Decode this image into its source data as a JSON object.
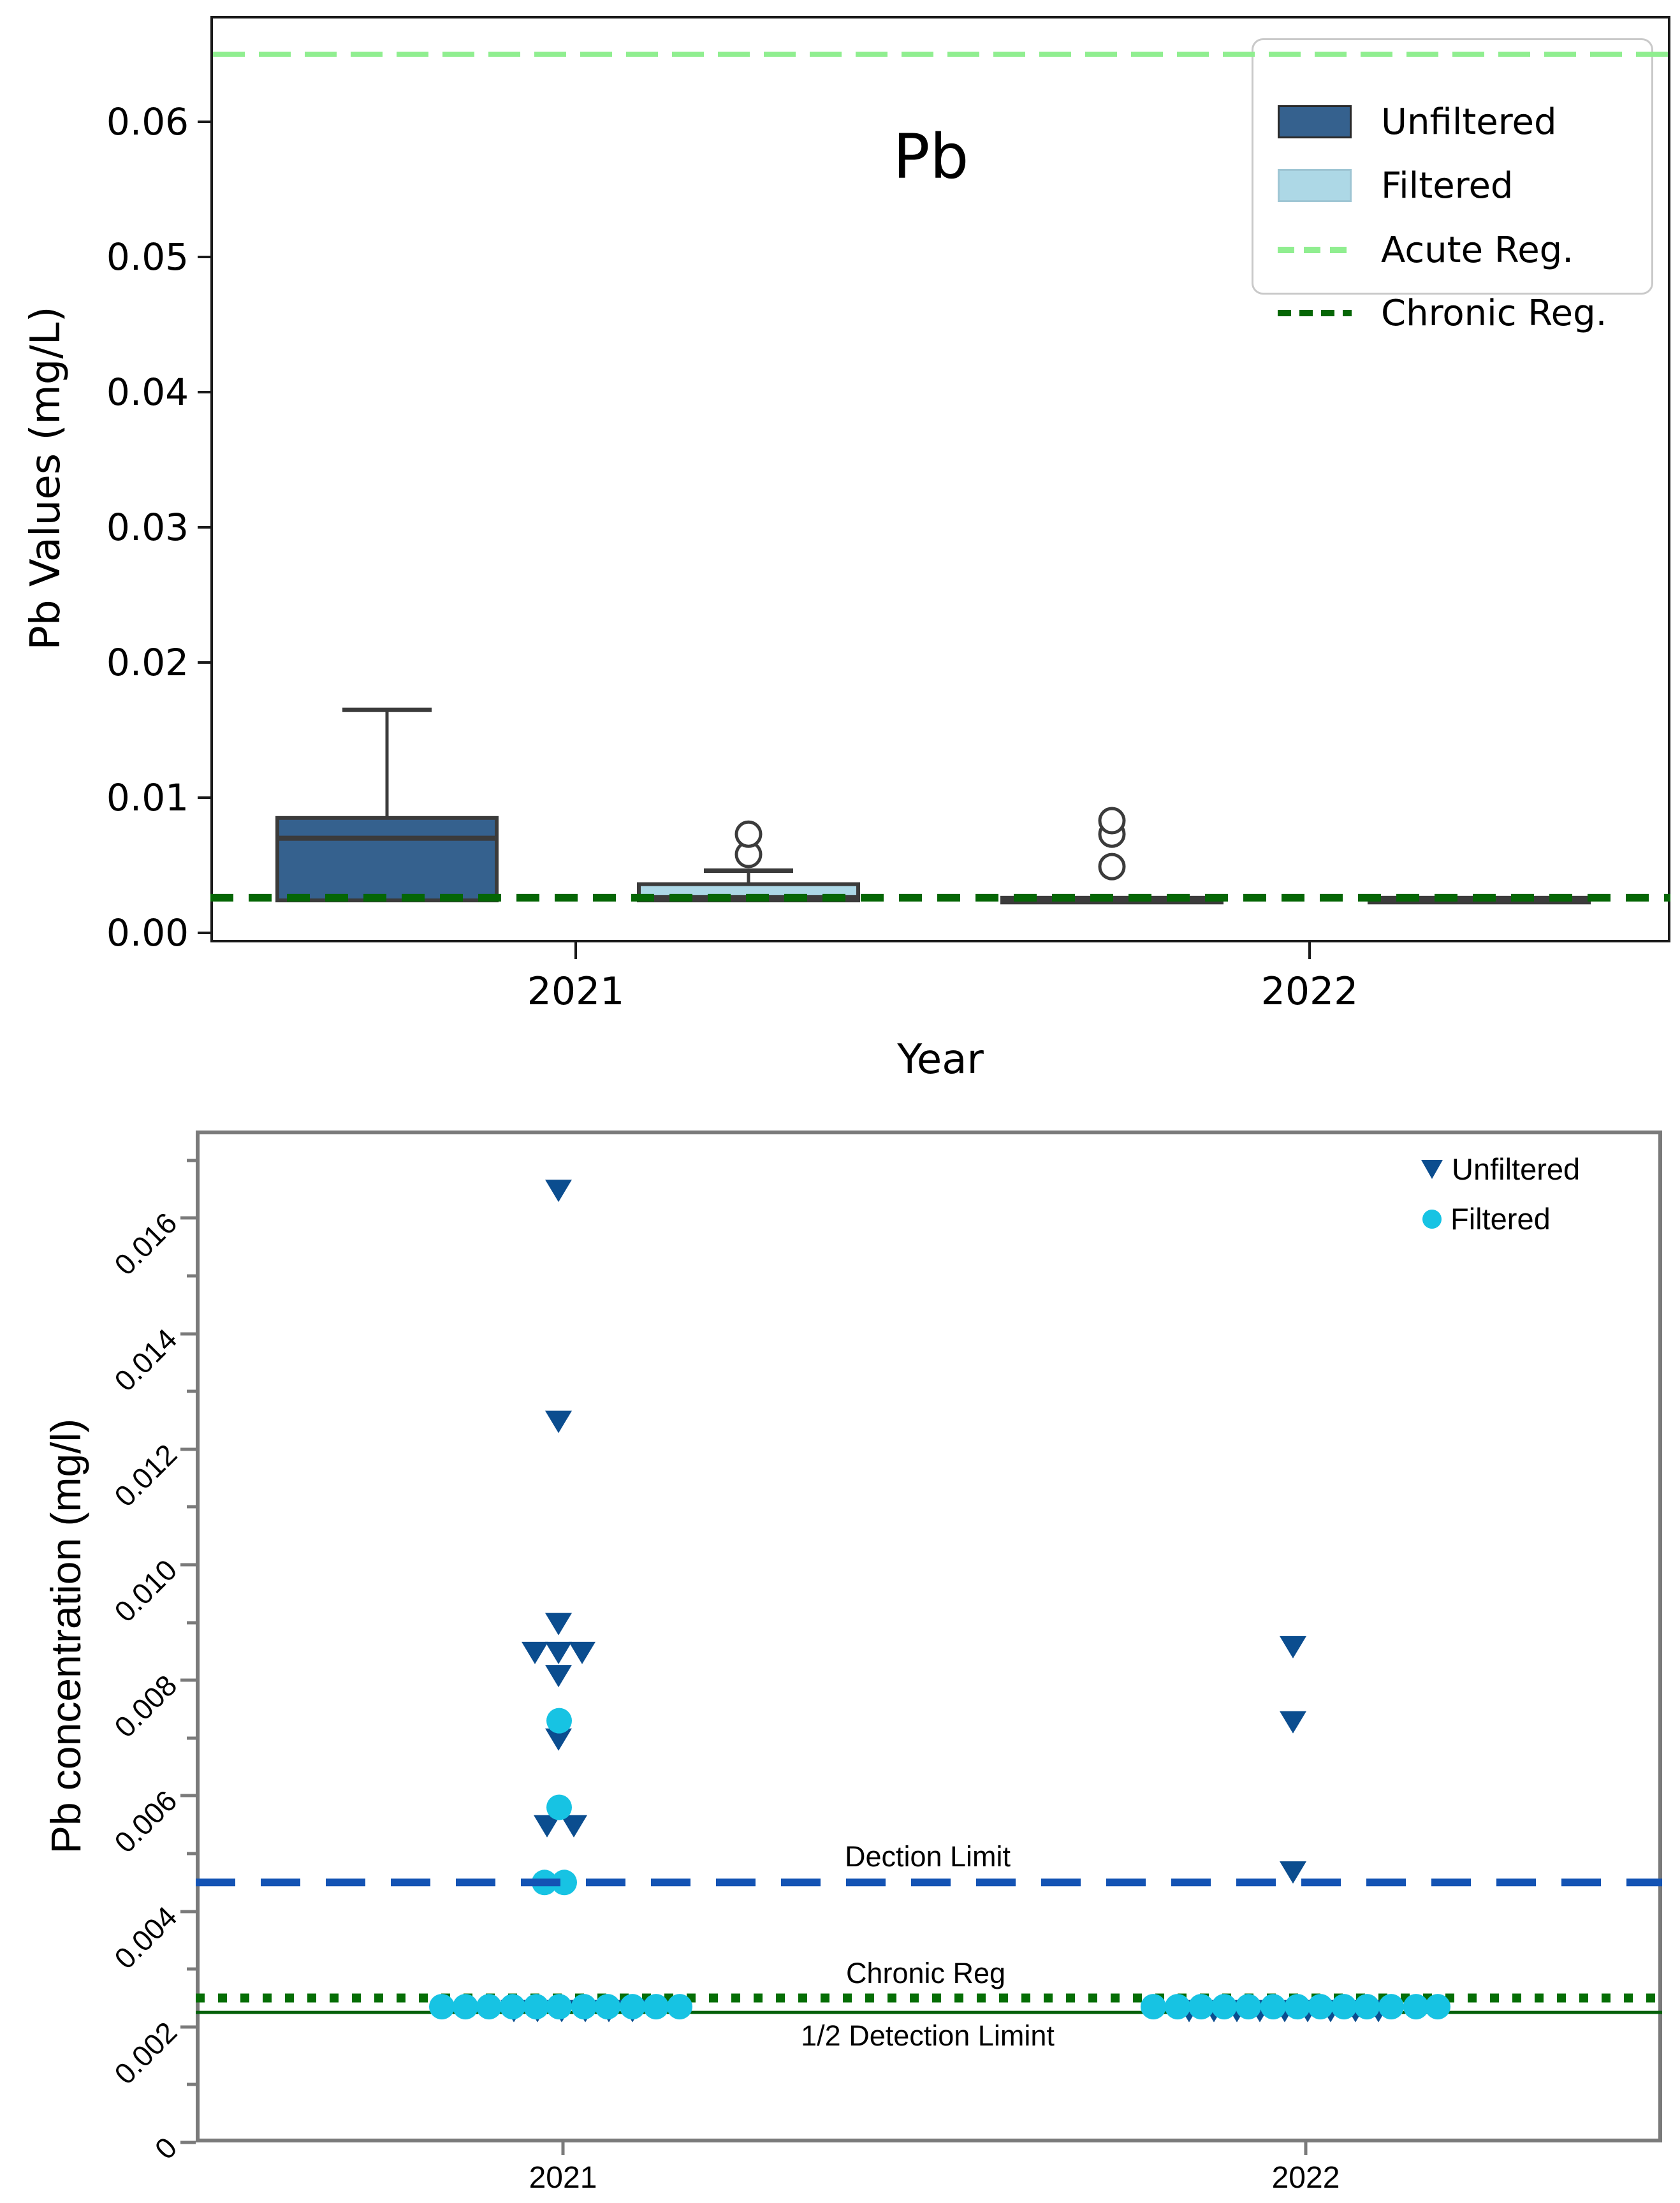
{
  "chart_data": [
    {
      "type": "box",
      "title": "Pb",
      "xlabel": "Year",
      "ylabel": "Pb Values (mg/L)",
      "categories": [
        "2021",
        "2022"
      ],
      "ylim": [
        -0.0007,
        0.0672
      ],
      "yticks": [
        {
          "label": "0.00",
          "value": 0.0
        },
        {
          "label": "0.01",
          "value": 0.01
        },
        {
          "label": "0.02",
          "value": 0.02
        },
        {
          "label": "0.03",
          "value": 0.03
        },
        {
          "label": "0.04",
          "value": 0.04
        },
        {
          "label": "0.05",
          "value": 0.05
        },
        {
          "label": "0.06",
          "value": 0.06
        }
      ],
      "legend": [
        {
          "label": "Unfiltered",
          "color": "#35618e",
          "kind": "patch"
        },
        {
          "label": "Filtered",
          "color": "#add8e6",
          "kind": "patch"
        },
        {
          "label": "Acute Reg.",
          "color": "#90ee90",
          "kind": "dashed-line"
        },
        {
          "label": "Chronic Reg.",
          "color": "#056605",
          "kind": "dashed-line"
        }
      ],
      "reference_lines": [
        {
          "name": "Acute Reg.",
          "value": 0.065,
          "color": "#90ee90",
          "style": "dashed"
        },
        {
          "name": "Chronic Reg.",
          "value": 0.0026,
          "color": "#056605",
          "style": "dashed"
        }
      ],
      "groups": [
        {
          "year": "2021",
          "series": "Unfiltered",
          "cx": 607,
          "q1": 0.0024,
          "median": 0.007,
          "q3": 0.0085,
          "whisker_low": 0.0024,
          "whisker_high": 0.0165,
          "outliers": []
        },
        {
          "year": "2021",
          "series": "Filtered",
          "cx": 1174,
          "q1": 0.0024,
          "median": 0.0026,
          "q3": 0.0036,
          "whisker_low": 0.0024,
          "whisker_high": 0.0046,
          "outliers": [
            0.0058,
            0.0073
          ]
        },
        {
          "year": "2022",
          "series": "Unfiltered",
          "cx": 1744,
          "q1": 0.00225,
          "median": 0.0024,
          "q3": 0.0026,
          "whisker_low": 0.00225,
          "whisker_high": 0.0026,
          "outliers": [
            0.0049,
            0.0073,
            0.0083
          ]
        },
        {
          "year": "2022",
          "series": "Filtered",
          "cx": 2320,
          "q1": 0.00225,
          "median": 0.0024,
          "q3": 0.0026,
          "whisker_low": 0.00225,
          "whisker_high": 0.0026,
          "outliers": []
        }
      ],
      "xticks": [
        {
          "label": "2021",
          "px": 903
        },
        {
          "label": "2022",
          "px": 2054
        }
      ],
      "colors": {
        "unfiltered_box": "#35618e",
        "filtered_box": "#add8e6",
        "box_edge": "#3b3b3b"
      }
    },
    {
      "type": "scatter",
      "title": "",
      "xlabel": "",
      "ylabel": "Pb concentration (mg/l)",
      "ylim": [
        0,
        0.0175
      ],
      "yticks": [
        {
          "label": "0",
          "value": 0.0
        },
        {
          "label": "0.002",
          "value": 0.002
        },
        {
          "label": "0.004",
          "value": 0.004
        },
        {
          "label": "0.006",
          "value": 0.006
        },
        {
          "label": "0.008",
          "value": 0.008
        },
        {
          "label": "0.010",
          "value": 0.01
        },
        {
          "label": "0.012",
          "value": 0.012
        },
        {
          "label": "0.014",
          "value": 0.014
        },
        {
          "label": "0.016",
          "value": 0.016
        }
      ],
      "minor_yticks": [
        0.001,
        0.003,
        0.005,
        0.007,
        0.009,
        0.011,
        0.013,
        0.015,
        0.017
      ],
      "xticks": [
        {
          "label": "2021",
          "px": 883
        },
        {
          "label": "2022",
          "px": 2048
        }
      ],
      "reference_lines": [
        {
          "label": "Dection Limit",
          "value": 0.0045,
          "color": "#1353b4",
          "style": "dashed"
        },
        {
          "label": "Chronic Reg",
          "value": 0.0025,
          "color": "#056e05",
          "style": "dotted"
        },
        {
          "label": "1/2 Detection Limint",
          "value": 0.00225,
          "color": "#04600a",
          "style": "solid"
        }
      ],
      "series": [
        {
          "name": "Unfiltered",
          "marker": "triangle-down",
          "color": "#0b4d8f",
          "points": [
            [
              876,
              0.0165
            ],
            [
              876,
              0.0125
            ],
            [
              876,
              0.009
            ],
            [
              839,
              0.0085
            ],
            [
              876,
              0.0085
            ],
            [
              913,
              0.0085
            ],
            [
              876,
              0.0081
            ],
            [
              876,
              0.007
            ],
            [
              858,
              0.0055
            ],
            [
              900,
              0.0055
            ],
            [
              806,
              0.0023
            ],
            [
              843,
              0.0023
            ],
            [
              881,
              0.0023
            ],
            [
              918,
              0.0023
            ],
            [
              955,
              0.0023
            ],
            [
              992,
              0.0023
            ],
            [
              2028,
              0.0086
            ],
            [
              2028,
              0.0073
            ],
            [
              2028,
              0.0047
            ],
            [
              1865,
              0.0023
            ],
            [
              1904,
              0.0023
            ],
            [
              1940,
              0.0023
            ],
            [
              1976,
              0.0023
            ],
            [
              2015,
              0.0023
            ],
            [
              2051,
              0.0023
            ],
            [
              2087,
              0.0023
            ],
            [
              2126,
              0.0023
            ],
            [
              2162,
              0.0023
            ]
          ]
        },
        {
          "name": "Filtered",
          "marker": "circle",
          "color": "#17c3e3",
          "points": [
            [
              877,
              0.0073
            ],
            [
              877,
              0.0058
            ],
            [
              854,
              0.0045
            ],
            [
              885,
              0.0045
            ],
            [
              693,
              0.00235
            ],
            [
              730,
              0.00235
            ],
            [
              767,
              0.00235
            ],
            [
              804,
              0.00235
            ],
            [
              841,
              0.00235
            ],
            [
              877,
              0.00235
            ],
            [
              916,
              0.00235
            ],
            [
              953,
              0.00235
            ],
            [
              992,
              0.00235
            ],
            [
              1029,
              0.00235
            ],
            [
              1066,
              0.00235
            ],
            [
              1809,
              0.00235
            ],
            [
              1847,
              0.00235
            ],
            [
              1884,
              0.00235
            ],
            [
              1920,
              0.00235
            ],
            [
              1958,
              0.00235
            ],
            [
              1997,
              0.00235
            ],
            [
              2035,
              0.00235
            ],
            [
              2071,
              0.00235
            ],
            [
              2108,
              0.00235
            ],
            [
              2144,
              0.00235
            ],
            [
              2182,
              0.00235
            ],
            [
              2221,
              0.00235
            ],
            [
              2255,
              0.00235
            ]
          ]
        }
      ],
      "legend_position": "upper right"
    }
  ]
}
